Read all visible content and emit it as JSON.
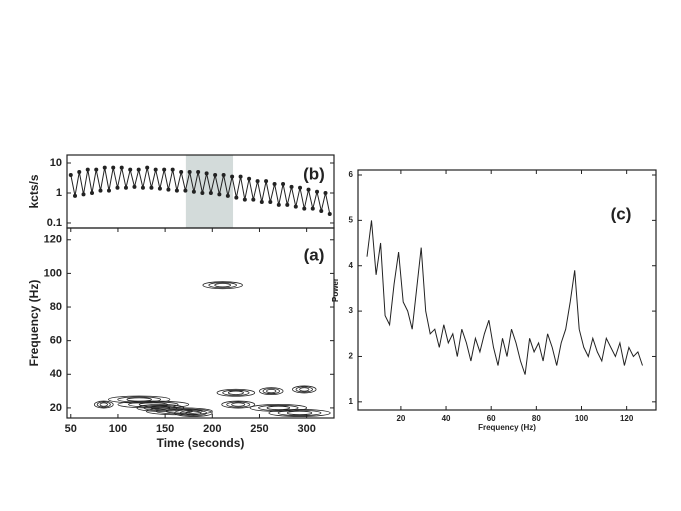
{
  "chart_data": [
    {
      "type": "scatter-line",
      "label": "(b)",
      "ylabel": "kcts/s",
      "log_y": true,
      "xlim": [
        46,
        329
      ],
      "ylim": [
        0.068,
        18.5
      ],
      "yticks": [
        0.1,
        1,
        10
      ],
      "highlight": [
        172,
        222
      ],
      "highlight_color": "#d3dbda",
      "color": "#222222",
      "x": [
        50,
        54.5,
        59,
        63.5,
        68,
        72.5,
        77,
        81.5,
        86,
        90.5,
        95,
        99.5,
        104,
        108.5,
        113,
        117.5,
        122,
        126.5,
        131,
        135.5,
        140,
        144.5,
        149,
        153.5,
        158,
        162.5,
        167,
        171.5,
        176,
        180.5,
        185,
        189.5,
        194,
        198.5,
        203,
        207.5,
        212,
        216.5,
        221,
        225.5,
        230,
        234.5,
        239,
        243.5,
        248,
        252.5,
        257,
        261.5,
        266,
        270.5,
        275,
        279.5,
        284,
        288.5,
        293,
        297.5,
        302,
        306.5,
        311,
        315.5,
        320,
        324.5
      ],
      "values": [
        4,
        0.8,
        5,
        0.9,
        6,
        1,
        6,
        1.2,
        7,
        1.2,
        7,
        1.5,
        7,
        1.5,
        6,
        1.6,
        6,
        1.5,
        7,
        1.5,
        6,
        1.4,
        6,
        1.3,
        6,
        1.2,
        5,
        1.2,
        5,
        1.1,
        5,
        1,
        4.5,
        1,
        4,
        0.9,
        4,
        0.8,
        3.5,
        0.7,
        3.5,
        0.6,
        3,
        0.6,
        2.5,
        0.5,
        2.5,
        0.5,
        2,
        0.4,
        2,
        0.4,
        1.6,
        0.35,
        1.5,
        0.3,
        1.3,
        0.3,
        1.1,
        0.25,
        1,
        0.2
      ]
    },
    {
      "type": "contour",
      "label": "(a)",
      "xlabel": "Time (seconds)",
      "ylabel": "Frequency (Hz)",
      "xlim": [
        46,
        329
      ],
      "ylim": [
        14,
        127
      ],
      "xticks": [
        50,
        100,
        150,
        200,
        250,
        300
      ],
      "yticks": [
        20,
        40,
        60,
        80,
        100,
        120
      ],
      "color": "#222222",
      "x0": [
        190,
        75,
        90,
        100,
        120,
        130,
        160,
        210,
        205,
        250,
        285,
        240,
        260
      ],
      "x1": [
        232,
        95,
        155,
        175,
        170,
        200,
        200,
        245,
        245,
        275,
        310,
        300,
        325
      ],
      "y": [
        93,
        22,
        25,
        22,
        20,
        18,
        17,
        22,
        29,
        30,
        31,
        20,
        17
      ]
    },
    {
      "type": "line",
      "label": "(c)",
      "xlabel": "Frequency (Hz)",
      "ylabel": "Power",
      "xlim": [
        1,
        133
      ],
      "ylim": [
        0.82,
        6.11
      ],
      "xticks": [
        20,
        40,
        60,
        80,
        100,
        120
      ],
      "yticks": [
        1,
        2,
        3,
        4,
        5,
        6
      ],
      "color": "#222222",
      "x": [
        5,
        7,
        9,
        11,
        13,
        15,
        17,
        19,
        21,
        23,
        25,
        27,
        29,
        31,
        33,
        35,
        37,
        39,
        41,
        43,
        45,
        47,
        49,
        51,
        53,
        55,
        57,
        59,
        61,
        63,
        65,
        67,
        69,
        71,
        73,
        75,
        77,
        79,
        81,
        83,
        85,
        87,
        89,
        91,
        93,
        95,
        97,
        99,
        101,
        103,
        105,
        107,
        109,
        111,
        113,
        115,
        117,
        119,
        121,
        123,
        125,
        127
      ],
      "values": [
        4.2,
        5.0,
        3.8,
        4.5,
        2.9,
        2.7,
        3.6,
        4.3,
        3.2,
        3.0,
        2.6,
        3.5,
        4.4,
        3.0,
        2.5,
        2.6,
        2.2,
        2.7,
        2.3,
        2.5,
        2.0,
        2.6,
        2.3,
        1.9,
        2.4,
        2.1,
        2.5,
        2.8,
        2.2,
        1.8,
        2.4,
        2.0,
        2.6,
        2.3,
        1.9,
        1.6,
        2.4,
        2.1,
        2.3,
        1.9,
        2.5,
        2.2,
        1.8,
        2.3,
        2.6,
        3.2,
        3.9,
        2.6,
        2.2,
        2.0,
        2.4,
        2.1,
        1.9,
        2.4,
        2.2,
        2.0,
        2.3,
        1.8,
        2.2,
        2.0,
        2.1,
        1.8
      ]
    }
  ]
}
